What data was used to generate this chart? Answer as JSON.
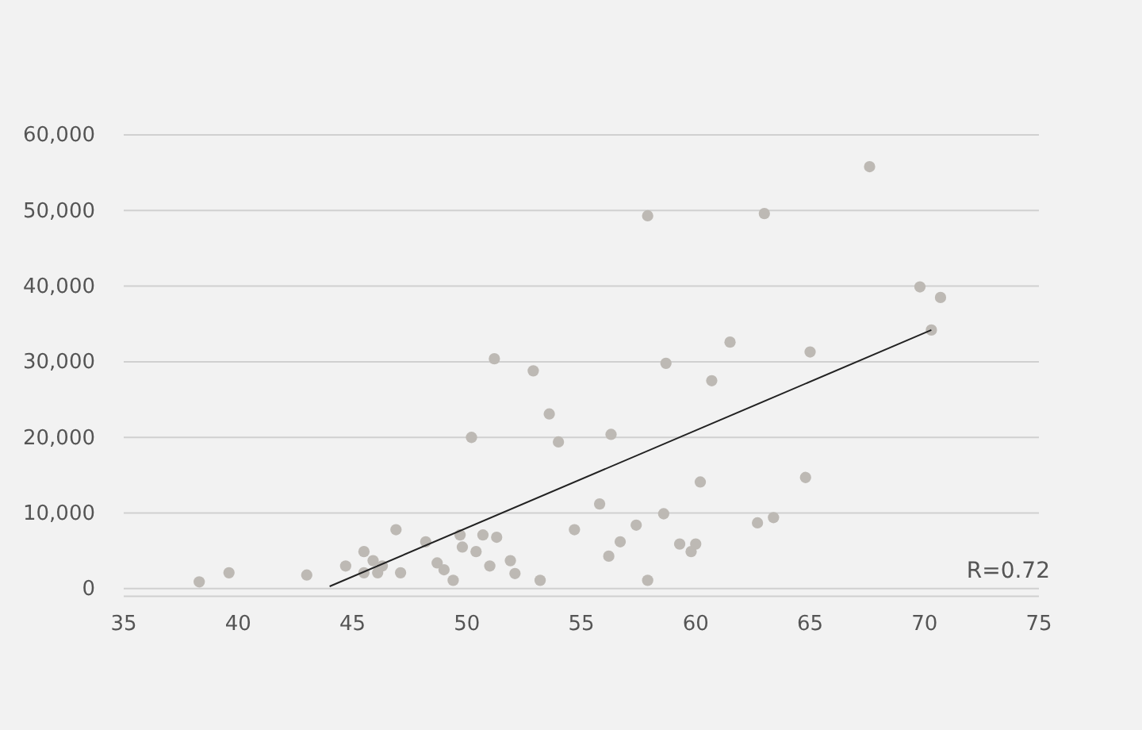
{
  "chart_data": {
    "type": "scatter",
    "xlim": [
      35,
      75
    ],
    "xticks": [
      35,
      40,
      45,
      50,
      55,
      60,
      65,
      70,
      75
    ],
    "ylim": [
      -1000,
      60000
    ],
    "yticks": [
      {
        "value": 0,
        "label": "0"
      },
      {
        "value": 10000,
        "label": "10,000"
      },
      {
        "value": 20000,
        "label": "20,000"
      },
      {
        "value": 30000,
        "label": "30,000"
      },
      {
        "value": 40000,
        "label": "40,000"
      },
      {
        "value": 50000,
        "label": "50,000"
      },
      {
        "value": 60000,
        "label": "60,000"
      }
    ],
    "grid": "y",
    "annotations": [
      "R=0.72"
    ],
    "series": [
      {
        "marker": "circle",
        "color": "#bdb9b4",
        "x": [
          38.3,
          39.6,
          43.0,
          44.7,
          45.5,
          45.5,
          45.9,
          46.1,
          46.3,
          46.9,
          47.1,
          48.2,
          48.7,
          49.0,
          49.4,
          49.7,
          49.8,
          50.4,
          50.7,
          51.0,
          51.3,
          51.9,
          52.1,
          53.2,
          54.7,
          55.8,
          56.2,
          56.7,
          57.4,
          57.9,
          58.6,
          59.3,
          59.8,
          60.0,
          60.2,
          62.7,
          63.4,
          64.8,
          67.6,
          57.9,
          63.0,
          69.8,
          70.7,
          70.3,
          51.2,
          52.9,
          61.5,
          65.0,
          58.7,
          60.7,
          53.6,
          54.0,
          50.2,
          56.3
        ],
        "values": [
          900,
          2100,
          1800,
          3000,
          4900,
          2100,
          3700,
          2100,
          3000,
          7800,
          2100,
          6200,
          3400,
          2500,
          1100,
          7100,
          5500,
          4900,
          7100,
          3000,
          6800,
          3700,
          2000,
          1100,
          7800,
          11200,
          4300,
          6200,
          8400,
          1100,
          9900,
          5900,
          4900,
          5900,
          14100,
          8700,
          9400,
          14700,
          55800,
          49300,
          49600,
          39900,
          38500,
          34200,
          30400,
          28800,
          32600,
          31300,
          29800,
          27500,
          23100,
          19400,
          20000,
          20400
        ]
      },
      {
        "type": "line",
        "color": "#222222",
        "line_style": "solid",
        "x": [
          44.0,
          70.3
        ],
        "values": [
          300,
          34200
        ]
      }
    ]
  }
}
